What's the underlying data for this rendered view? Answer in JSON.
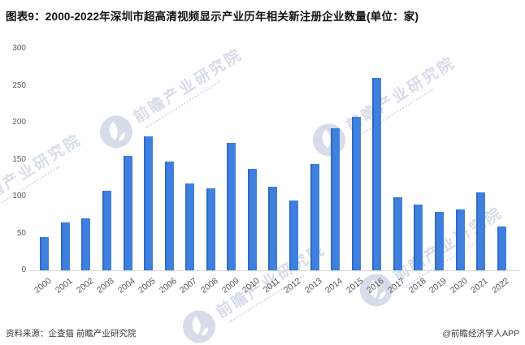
{
  "title": "图表9：2000-2022年深圳市超高清视频显示产业历年相关新注册企业数量(单位：家)",
  "chart_data": {
    "type": "bar",
    "title": "2000-2022年深圳市超高清视频显示产业历年相关新注册企业数量",
    "unit": "家",
    "categories": [
      "2000",
      "2001",
      "2002",
      "2003",
      "2004",
      "2005",
      "2006",
      "2007",
      "2008",
      "2009",
      "2010",
      "2011",
      "2012",
      "2013",
      "2014",
      "2015",
      "2016",
      "2017",
      "2018",
      "2019",
      "2020",
      "2021",
      "2022"
    ],
    "values": [
      45,
      65,
      70,
      108,
      155,
      181,
      147,
      118,
      111,
      172,
      137,
      113,
      95,
      144,
      192,
      208,
      261,
      99,
      89,
      79,
      82,
      105,
      59
    ],
    "xlabel": "",
    "ylabel": "",
    "ylim": [
      0,
      300
    ],
    "yticks": [
      0,
      50,
      100,
      150,
      200,
      250,
      300
    ],
    "grid": false,
    "legend": false,
    "bar_color": "#3F7FDE"
  },
  "footer": {
    "source": "资料来源：企查猫 前瞻产业研究院",
    "credit": "@前瞻经济学人APP"
  },
  "watermark": {
    "text": "前瞻产业研究院"
  },
  "colors": {
    "bar": "#3F7FDE",
    "bar_edge": "#2E6CC6",
    "axis_text": "#595959",
    "baseline": "#D9D9D9",
    "title_text": "#111111",
    "footer_text": "#3A3A3A",
    "watermark": "#AEBDD4"
  }
}
